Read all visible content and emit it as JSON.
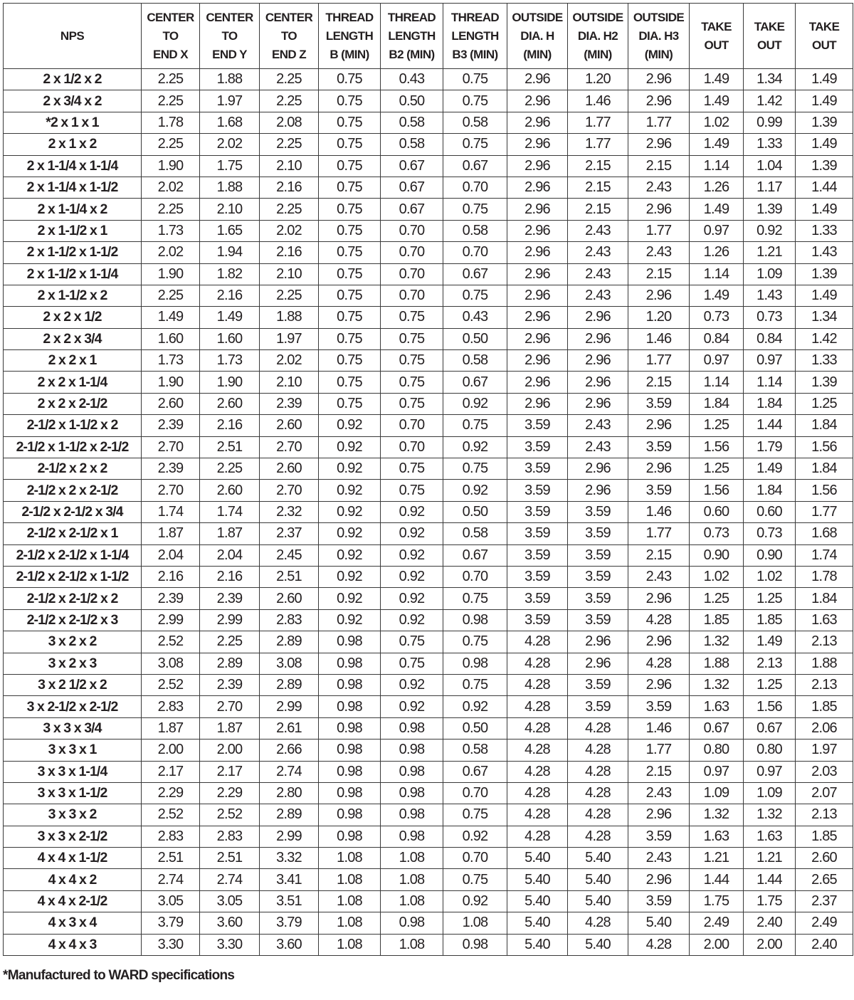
{
  "headers": [
    "NPS",
    "CENTER\nTO\nEND X",
    "CENTER\nTO\nEND Y",
    "CENTER\nTO\nEND Z",
    "THREAD\nLENGTH\nB (MIN)",
    "THREAD\nLENGTH\nB2 (MIN)",
    "THREAD\nLENGTH\nB3 (MIN)",
    "OUTSIDE\nDIA. H\n(MIN)",
    "OUTSIDE\nDIA. H2\n(MIN)",
    "OUTSIDE\nDIA. H3\n(MIN)",
    "TAKE\nOUT",
    "TAKE\nOUT",
    "TAKE\nOUT"
  ],
  "rows": [
    [
      "2 x 1/2 x 2",
      "2.25",
      "1.88",
      "2.25",
      "0.75",
      "0.43",
      "0.75",
      "2.96",
      "1.20",
      "2.96",
      "1.49",
      "1.34",
      "1.49"
    ],
    [
      "2 x 3/4 x 2",
      "2.25",
      "1.97",
      "2.25",
      "0.75",
      "0.50",
      "0.75",
      "2.96",
      "1.46",
      "2.96",
      "1.49",
      "1.42",
      "1.49"
    ],
    [
      "*2 x 1 x 1",
      "1.78",
      "1.68",
      "2.08",
      "0.75",
      "0.58",
      "0.58",
      "2.96",
      "1.77",
      "1.77",
      "1.02",
      "0.99",
      "1.39"
    ],
    [
      "2 x 1 x 2",
      "2.25",
      "2.02",
      "2.25",
      "0.75",
      "0.58",
      "0.75",
      "2.96",
      "1.77",
      "2.96",
      "1.49",
      "1.33",
      "1.49"
    ],
    [
      "2 x 1-1/4 x 1-1/4",
      "1.90",
      "1.75",
      "2.10",
      "0.75",
      "0.67",
      "0.67",
      "2.96",
      "2.15",
      "2.15",
      "1.14",
      "1.04",
      "1.39"
    ],
    [
      "2 x 1-1/4 x 1-1/2",
      "2.02",
      "1.88",
      "2.16",
      "0.75",
      "0.67",
      "0.70",
      "2.96",
      "2.15",
      "2.43",
      "1.26",
      "1.17",
      "1.44"
    ],
    [
      "2 x 1-1/4 x 2",
      "2.25",
      "2.10",
      "2.25",
      "0.75",
      "0.67",
      "0.75",
      "2.96",
      "2.15",
      "2.96",
      "1.49",
      "1.39",
      "1.49"
    ],
    [
      "2 x 1-1/2 x 1",
      "1.73",
      "1.65",
      "2.02",
      "0.75",
      "0.70",
      "0.58",
      "2.96",
      "2.43",
      "1.77",
      "0.97",
      "0.92",
      "1.33"
    ],
    [
      "2 x 1-1/2 x 1-1/2",
      "2.02",
      "1.94",
      "2.16",
      "0.75",
      "0.70",
      "0.70",
      "2.96",
      "2.43",
      "2.43",
      "1.26",
      "1.21",
      "1.43"
    ],
    [
      "2 x 1-1/2 x 1-1/4",
      "1.90",
      "1.82",
      "2.10",
      "0.75",
      "0.70",
      "0.67",
      "2.96",
      "2.43",
      "2.15",
      "1.14",
      "1.09",
      "1.39"
    ],
    [
      "2 x 1-1/2 x 2",
      "2.25",
      "2.16",
      "2.25",
      "0.75",
      "0.70",
      "0.75",
      "2.96",
      "2.43",
      "2.96",
      "1.49",
      "1.43",
      "1.49"
    ],
    [
      "2 x 2 x 1/2",
      "1.49",
      "1.49",
      "1.88",
      "0.75",
      "0.75",
      "0.43",
      "2.96",
      "2.96",
      "1.20",
      "0.73",
      "0.73",
      "1.34"
    ],
    [
      "2 x 2 x 3/4",
      "1.60",
      "1.60",
      "1.97",
      "0.75",
      "0.75",
      "0.50",
      "2.96",
      "2.96",
      "1.46",
      "0.84",
      "0.84",
      "1.42"
    ],
    [
      "2 x 2 x 1",
      "1.73",
      "1.73",
      "2.02",
      "0.75",
      "0.75",
      "0.58",
      "2.96",
      "2.96",
      "1.77",
      "0.97",
      "0.97",
      "1.33"
    ],
    [
      "2 x 2 x 1-1/4",
      "1.90",
      "1.90",
      "2.10",
      "0.75",
      "0.75",
      "0.67",
      "2.96",
      "2.96",
      "2.15",
      "1.14",
      "1.14",
      "1.39"
    ],
    [
      "2 x 2 x 2-1/2",
      "2.60",
      "2.60",
      "2.39",
      "0.75",
      "0.75",
      "0.92",
      "2.96",
      "2.96",
      "3.59",
      "1.84",
      "1.84",
      "1.25"
    ],
    [
      "2-1/2 x 1-1/2 x 2",
      "2.39",
      "2.16",
      "2.60",
      "0.92",
      "0.70",
      "0.75",
      "3.59",
      "2.43",
      "2.96",
      "1.25",
      "1.44",
      "1.84"
    ],
    [
      "2-1/2 x 1-1/2 x 2-1/2",
      "2.70",
      "2.51",
      "2.70",
      "0.92",
      "0.70",
      "0.92",
      "3.59",
      "2.43",
      "3.59",
      "1.56",
      "1.79",
      "1.56"
    ],
    [
      "2-1/2 x 2 x 2",
      "2.39",
      "2.25",
      "2.60",
      "0.92",
      "0.75",
      "0.75",
      "3.59",
      "2.96",
      "2.96",
      "1.25",
      "1.49",
      "1.84"
    ],
    [
      "2-1/2 x 2 x 2-1/2",
      "2.70",
      "2.60",
      "2.70",
      "0.92",
      "0.75",
      "0.92",
      "3.59",
      "2.96",
      "3.59",
      "1.56",
      "1.84",
      "1.56"
    ],
    [
      "2-1/2 x 2-1/2 x 3/4",
      "1.74",
      "1.74",
      "2.32",
      "0.92",
      "0.92",
      "0.50",
      "3.59",
      "3.59",
      "1.46",
      "0.60",
      "0.60",
      "1.77"
    ],
    [
      "2-1/2 x 2-1/2 x 1",
      "1.87",
      "1.87",
      "2.37",
      "0.92",
      "0.92",
      "0.58",
      "3.59",
      "3.59",
      "1.77",
      "0.73",
      "0.73",
      "1.68"
    ],
    [
      "2-1/2 x 2-1/2 x 1-1/4",
      "2.04",
      "2.04",
      "2.45",
      "0.92",
      "0.92",
      "0.67",
      "3.59",
      "3.59",
      "2.15",
      "0.90",
      "0.90",
      "1.74"
    ],
    [
      "2-1/2 x 2-1/2 x 1-1/2",
      "2.16",
      "2.16",
      "2.51",
      "0.92",
      "0.92",
      "0.70",
      "3.59",
      "3.59",
      "2.43",
      "1.02",
      "1.02",
      "1.78"
    ],
    [
      "2-1/2 x 2-1/2 x 2",
      "2.39",
      "2.39",
      "2.60",
      "0.92",
      "0.92",
      "0.75",
      "3.59",
      "3.59",
      "2.96",
      "1.25",
      "1.25",
      "1.84"
    ],
    [
      "2-1/2 x 2-1/2 x 3",
      "2.99",
      "2.99",
      "2.83",
      "0.92",
      "0.92",
      "0.98",
      "3.59",
      "3.59",
      "4.28",
      "1.85",
      "1.85",
      "1.63"
    ],
    [
      "3 x 2 x 2",
      "2.52",
      "2.25",
      "2.89",
      "0.98",
      "0.75",
      "0.75",
      "4.28",
      "2.96",
      "2.96",
      "1.32",
      "1.49",
      "2.13"
    ],
    [
      "3 x 2 x 3",
      "3.08",
      "2.89",
      "3.08",
      "0.98",
      "0.75",
      "0.98",
      "4.28",
      "2.96",
      "4.28",
      "1.88",
      "2.13",
      "1.88"
    ],
    [
      "3 x 2 1/2 x 2",
      "2.52",
      "2.39",
      "2.89",
      "0.98",
      "0.92",
      "0.75",
      "4.28",
      "3.59",
      "2.96",
      "1.32",
      "1.25",
      "2.13"
    ],
    [
      "3 x 2-1/2 x 2-1/2",
      "2.83",
      "2.70",
      "2.99",
      "0.98",
      "0.92",
      "0.92",
      "4.28",
      "3.59",
      "3.59",
      "1.63",
      "1.56",
      "1.85"
    ],
    [
      "3 x 3 x 3/4",
      "1.87",
      "1.87",
      "2.61",
      "0.98",
      "0.98",
      "0.50",
      "4.28",
      "4.28",
      "1.46",
      "0.67",
      "0.67",
      "2.06"
    ],
    [
      "3 x 3 x 1",
      "2.00",
      "2.00",
      "2.66",
      "0.98",
      "0.98",
      "0.58",
      "4.28",
      "4.28",
      "1.77",
      "0.80",
      "0.80",
      "1.97"
    ],
    [
      "3 x 3 x 1-1/4",
      "2.17",
      "2.17",
      "2.74",
      "0.98",
      "0.98",
      "0.67",
      "4.28",
      "4.28",
      "2.15",
      "0.97",
      "0.97",
      "2.03"
    ],
    [
      "3 x 3 x 1-1/2",
      "2.29",
      "2.29",
      "2.80",
      "0.98",
      "0.98",
      "0.70",
      "4.28",
      "4.28",
      "2.43",
      "1.09",
      "1.09",
      "2.07"
    ],
    [
      "3 x 3 x 2",
      "2.52",
      "2.52",
      "2.89",
      "0.98",
      "0.98",
      "0.75",
      "4.28",
      "4.28",
      "2.96",
      "1.32",
      "1.32",
      "2.13"
    ],
    [
      "3 x 3 x 2-1/2",
      "2.83",
      "2.83",
      "2.99",
      "0.98",
      "0.98",
      "0.92",
      "4.28",
      "4.28",
      "3.59",
      "1.63",
      "1.63",
      "1.85"
    ],
    [
      "4 x 4 x 1-1/2",
      "2.51",
      "2.51",
      "3.32",
      "1.08",
      "1.08",
      "0.70",
      "5.40",
      "5.40",
      "2.43",
      "1.21",
      "1.21",
      "2.60"
    ],
    [
      "4 x 4 x 2",
      "2.74",
      "2.74",
      "3.41",
      "1.08",
      "1.08",
      "0.75",
      "5.40",
      "5.40",
      "2.96",
      "1.44",
      "1.44",
      "2.65"
    ],
    [
      "4 x 4 x 2-1/2",
      "3.05",
      "3.05",
      "3.51",
      "1.08",
      "1.08",
      "0.92",
      "5.40",
      "5.40",
      "3.59",
      "1.75",
      "1.75",
      "2.37"
    ],
    [
      "4 x 3 x 4",
      "3.79",
      "3.60",
      "3.79",
      "1.08",
      "0.98",
      "1.08",
      "5.40",
      "4.28",
      "5.40",
      "2.49",
      "2.40",
      "2.49"
    ],
    [
      "4 x 4 x 3",
      "3.30",
      "3.30",
      "3.60",
      "1.08",
      "1.08",
      "0.98",
      "5.40",
      "5.40",
      "4.28",
      "2.00",
      "2.00",
      "2.40"
    ]
  ],
  "footnote": "*Manufactured to WARD specifications"
}
